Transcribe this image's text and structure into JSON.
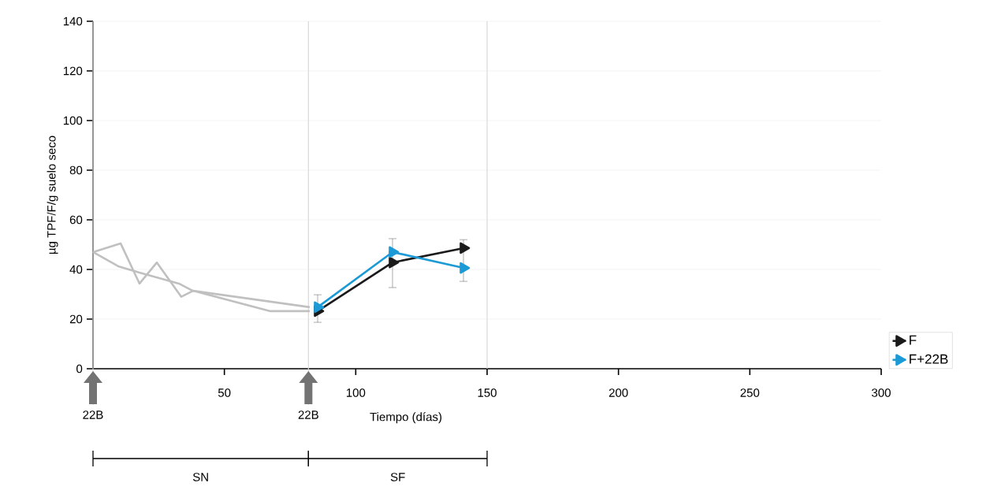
{
  "chart_data": {
    "type": "line",
    "ylabel": "µg TPF/F/g suelo seco",
    "xlabel": "Tiempo (días)",
    "xlim": [
      0,
      300
    ],
    "xticks": [
      50,
      100,
      150,
      200,
      250,
      300
    ],
    "ylim": [
      0,
      140
    ],
    "yticks": [
      0,
      20,
      40,
      60,
      80,
      100,
      120,
      140
    ],
    "grid": "y",
    "legend": "right",
    "series": [
      {
        "color": "#c0c0c0",
        "marker": "none",
        "x": [
          0,
          10.5,
          17.7,
          24.3,
          33.6,
          38.1,
          67.5,
          82.5
        ],
        "values": [
          47,
          50.5,
          34.3,
          42.8,
          29,
          31.4,
          23.2,
          23.2
        ]
      },
      {
        "color": "#c0c0c0",
        "marker": "none",
        "x": [
          0,
          9.6,
          17.7,
          32.7,
          38,
          82.5
        ],
        "values": [
          47,
          41.3,
          38.7,
          34.3,
          31.4,
          24.8
        ]
      },
      {
        "name": "F",
        "color": "#1a1a1a",
        "marker": "triangle",
        "x": [
          85.5,
          114,
          141
        ],
        "values": [
          23.2,
          42.8,
          48.6
        ],
        "errors": [
          [
            18.7,
            29.8
          ],
          [
            32.7,
            52.4
          ],
          null
        ]
      },
      {
        "name": "F+22B",
        "color": "#1b9ad6",
        "marker": "triangle",
        "x": [
          85.5,
          114,
          141
        ],
        "values": [
          24.8,
          47,
          40.6
        ],
        "errors": [
          null,
          null,
          [
            35.2,
            52
          ]
        ]
      }
    ],
    "annotations": [
      "SN",
      "SF"
    ],
    "ref_lines": [
      {
        "axis": "x",
        "value": 0,
        "label": "22B",
        "color": "#d9d9d9"
      },
      {
        "axis": "x",
        "value": 82,
        "label": "22B",
        "color": "#d9d9d9"
      },
      {
        "axis": "x",
        "value": 150,
        "color": "#d9d9d9"
      }
    ]
  }
}
